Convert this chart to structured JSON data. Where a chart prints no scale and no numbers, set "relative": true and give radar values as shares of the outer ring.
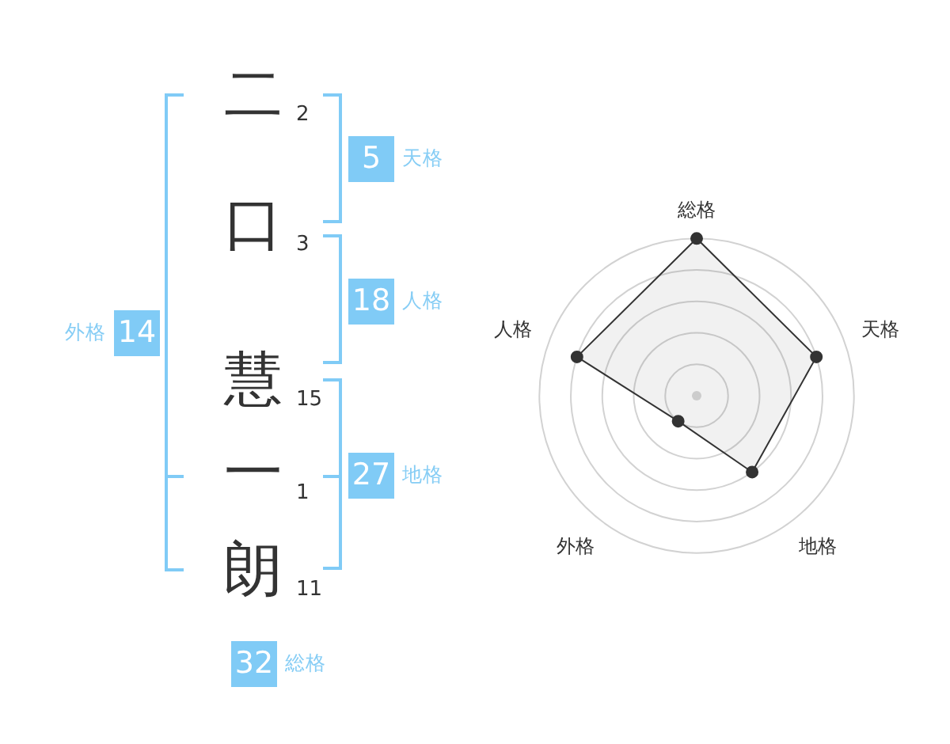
{
  "chart_data": [
    {
      "type": "other",
      "categories": [
        "二",
        "口",
        "慧",
        "一",
        "朗"
      ],
      "values": [
        2,
        3,
        15,
        1,
        11
      ],
      "data_labels": true,
      "annotations": [
        "5 天格",
        "18 人格",
        "27 地格",
        "外格 14",
        "32 総格"
      ]
    },
    {
      "type": "radar",
      "categories": [
        "総格",
        "天格",
        "地格",
        "外格",
        "人格"
      ],
      "relative": true,
      "series": [
        {
          "color": "#333333",
          "values": [
            1,
            0.8,
            0.6,
            0.2,
            0.8
          ]
        }
      ],
      "marker": "circle",
      "grid": true
    }
  ]
}
